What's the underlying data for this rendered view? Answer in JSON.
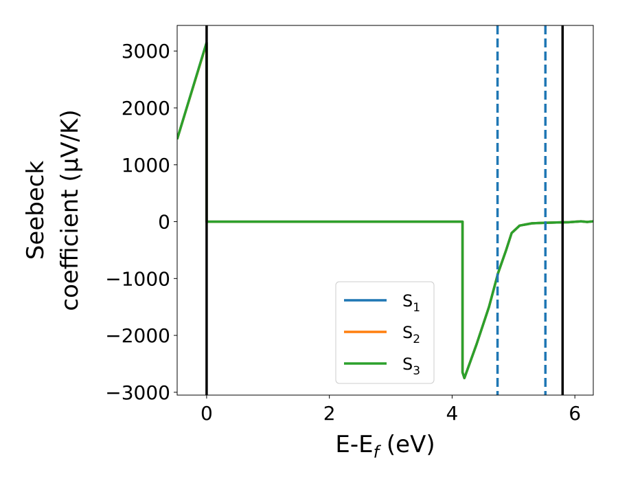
{
  "chart_data": {
    "type": "line",
    "xlabel": {
      "main": "E-E",
      "sub": "f",
      "unit": " (eV)"
    },
    "ylabel": {
      "line1": "Seebeck",
      "line2": "coefficient  (μV/K)"
    },
    "xlim": [
      -0.48,
      6.3
    ],
    "ylim": [
      -3050,
      3450
    ],
    "xticks": [
      0,
      2,
      4,
      6
    ],
    "xtick_labels": [
      "0",
      "2",
      "4",
      "6"
    ],
    "yticks": [
      3000,
      2000,
      1000,
      0,
      -1000,
      -2000,
      -3000
    ],
    "ytick_labels": [
      "3000",
      "2000",
      "1000",
      "0",
      "−1000",
      "−2000",
      "−3000"
    ],
    "grid": false,
    "legend_position": "lower-center",
    "series": [
      {
        "name": "S",
        "name_sub": "1",
        "color": "#1f77b4",
        "points": [
          [
            -0.48,
            1450
          ],
          [
            0.0,
            3150
          ],
          [
            0.0,
            0
          ],
          [
            4.17,
            0
          ],
          [
            4.17,
            -2650
          ],
          [
            4.2,
            -2750
          ],
          [
            4.4,
            -2150
          ],
          [
            4.6,
            -1500
          ],
          [
            4.75,
            -900
          ],
          [
            4.88,
            -500
          ],
          [
            4.97,
            -200
          ],
          [
            5.1,
            -70
          ],
          [
            5.3,
            -30
          ],
          [
            5.5,
            -20
          ],
          [
            5.7,
            -15
          ],
          [
            5.9,
            -10
          ],
          [
            6.1,
            5
          ],
          [
            6.2,
            -5
          ],
          [
            6.3,
            5
          ]
        ]
      },
      {
        "name": "S",
        "name_sub": "2",
        "color": "#ff7f0e",
        "points": [
          [
            -0.48,
            1450
          ],
          [
            0.0,
            3140
          ],
          [
            0.0,
            0
          ],
          [
            4.17,
            0
          ],
          [
            4.17,
            -2650
          ],
          [
            4.2,
            -2750
          ],
          [
            4.4,
            -2150
          ],
          [
            4.6,
            -1500
          ],
          [
            4.75,
            -900
          ],
          [
            4.88,
            -500
          ],
          [
            4.97,
            -200
          ],
          [
            5.1,
            -70
          ],
          [
            5.3,
            -30
          ],
          [
            5.5,
            -20
          ],
          [
            5.7,
            -15
          ],
          [
            5.9,
            -10
          ],
          [
            6.1,
            5
          ],
          [
            6.2,
            -5
          ],
          [
            6.3,
            5
          ]
        ]
      },
      {
        "name": "S",
        "name_sub": "3",
        "color": "#2ca02c",
        "points": [
          [
            -0.48,
            1450
          ],
          [
            0.0,
            3150
          ],
          [
            0.0,
            0
          ],
          [
            4.17,
            0
          ],
          [
            4.17,
            -2650
          ],
          [
            4.2,
            -2750
          ],
          [
            4.4,
            -2150
          ],
          [
            4.6,
            -1500
          ],
          [
            4.75,
            -900
          ],
          [
            4.88,
            -500
          ],
          [
            4.97,
            -200
          ],
          [
            5.1,
            -70
          ],
          [
            5.3,
            -30
          ],
          [
            5.5,
            -20
          ],
          [
            5.7,
            -15
          ],
          [
            5.9,
            -10
          ],
          [
            6.1,
            5
          ],
          [
            6.2,
            -5
          ],
          [
            6.3,
            5
          ]
        ]
      }
    ],
    "vertical_lines": [
      {
        "x": 0.0,
        "style": "solid",
        "color": "#000000"
      },
      {
        "x": 5.8,
        "style": "solid",
        "color": "#000000"
      },
      {
        "x": 4.74,
        "style": "dashed",
        "color": "#1f77b4"
      },
      {
        "x": 5.52,
        "style": "dashed",
        "color": "#1f77b4"
      }
    ]
  }
}
